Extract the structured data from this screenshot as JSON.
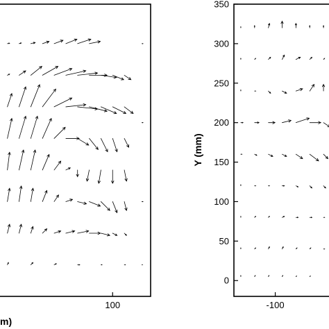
{
  "chart_data": [
    {
      "type": "vector-field",
      "title": "",
      "xlabel": "",
      "xlabel_fragment": "m)",
      "ylabel": "",
      "x_ticks": [
        100
      ],
      "y_ticks": [],
      "x_tick_labels": [
        "100"
      ],
      "xlim": [
        -95,
        165
      ],
      "ylim": [
        -20,
        350
      ],
      "grid": false,
      "legend": "none",
      "vectors": [
        {
          "x": -80,
          "y": 300,
          "u": 1,
          "v": 0.2
        },
        {
          "x": -60,
          "y": 300,
          "u": 1,
          "v": 0.3
        },
        {
          "x": -40,
          "y": 300,
          "u": 2,
          "v": 0.5
        },
        {
          "x": -20,
          "y": 300,
          "u": 3,
          "v": 1
        },
        {
          "x": 0,
          "y": 300,
          "u": 4,
          "v": 1.5
        },
        {
          "x": 20,
          "y": 300,
          "u": 5,
          "v": 2
        },
        {
          "x": 40,
          "y": 300,
          "u": 6,
          "v": 2
        },
        {
          "x": 60,
          "y": 300,
          "u": 5,
          "v": 1
        },
        {
          "x": -80,
          "y": 260,
          "u": 1,
          "v": 0.5
        },
        {
          "x": -60,
          "y": 260,
          "u": 3,
          "v": 2
        },
        {
          "x": -40,
          "y": 260,
          "u": 5,
          "v": 4
        },
        {
          "x": -20,
          "y": 260,
          "u": 7,
          "v": 4
        },
        {
          "x": 0,
          "y": 260,
          "u": 8,
          "v": 3
        },
        {
          "x": 20,
          "y": 260,
          "u": 9,
          "v": 2
        },
        {
          "x": 40,
          "y": 260,
          "u": 9,
          "v": 1
        },
        {
          "x": 60,
          "y": 260,
          "u": 8,
          "v": 0
        },
        {
          "x": 80,
          "y": 260,
          "u": 7,
          "v": -1
        },
        {
          "x": 100,
          "y": 260,
          "u": 5,
          "v": -2
        },
        {
          "x": 120,
          "y": 260,
          "u": 3,
          "v": -2
        },
        {
          "x": -80,
          "y": 220,
          "u": 2,
          "v": 6
        },
        {
          "x": -60,
          "y": 220,
          "u": 3,
          "v": 9
        },
        {
          "x": -40,
          "y": 220,
          "u": 4,
          "v": 10
        },
        {
          "x": -20,
          "y": 220,
          "u": 6,
          "v": 8
        },
        {
          "x": 0,
          "y": 220,
          "u": 8,
          "v": 4
        },
        {
          "x": 20,
          "y": 220,
          "u": 9,
          "v": 1
        },
        {
          "x": 40,
          "y": 220,
          "u": 9,
          "v": -1
        },
        {
          "x": 60,
          "y": 220,
          "u": 8,
          "v": -2
        },
        {
          "x": 80,
          "y": 220,
          "u": 7,
          "v": -3
        },
        {
          "x": 100,
          "y": 220,
          "u": 6,
          "v": -3
        },
        {
          "x": 120,
          "y": 220,
          "u": 4,
          "v": -3
        },
        {
          "x": -80,
          "y": 180,
          "u": 2,
          "v": 9
        },
        {
          "x": -60,
          "y": 180,
          "u": 3,
          "v": 10
        },
        {
          "x": -40,
          "y": 180,
          "u": 3,
          "v": 10
        },
        {
          "x": -20,
          "y": 180,
          "u": 4,
          "v": 9
        },
        {
          "x": 0,
          "y": 180,
          "u": 5,
          "v": 5
        },
        {
          "x": 20,
          "y": 180,
          "u": 6,
          "v": 0
        },
        {
          "x": 40,
          "y": 180,
          "u": 5,
          "v": -3
        },
        {
          "x": 60,
          "y": 180,
          "u": 4,
          "v": -5
        },
        {
          "x": 80,
          "y": 180,
          "u": 3,
          "v": -6
        },
        {
          "x": 100,
          "y": 180,
          "u": 2,
          "v": -6
        },
        {
          "x": 120,
          "y": 180,
          "u": 2,
          "v": -4
        },
        {
          "x": -80,
          "y": 140,
          "u": 1,
          "v": 8
        },
        {
          "x": -60,
          "y": 140,
          "u": 2,
          "v": 9
        },
        {
          "x": -40,
          "y": 140,
          "u": 2,
          "v": 9
        },
        {
          "x": -20,
          "y": 140,
          "u": 3,
          "v": 7
        },
        {
          "x": 0,
          "y": 140,
          "u": 3,
          "v": 4
        },
        {
          "x": 20,
          "y": 140,
          "u": 2,
          "v": 1
        },
        {
          "x": 40,
          "y": 140,
          "u": 0,
          "v": -3
        },
        {
          "x": 60,
          "y": 140,
          "u": -1,
          "v": -5
        },
        {
          "x": 80,
          "y": 140,
          "u": -1,
          "v": -6
        },
        {
          "x": 100,
          "y": 140,
          "u": 0,
          "v": -6
        },
        {
          "x": 120,
          "y": 140,
          "u": 1,
          "v": -5
        },
        {
          "x": -80,
          "y": 100,
          "u": 1,
          "v": 6
        },
        {
          "x": -60,
          "y": 100,
          "u": 1,
          "v": 7
        },
        {
          "x": -40,
          "y": 100,
          "u": 1,
          "v": 6
        },
        {
          "x": -20,
          "y": 100,
          "u": 2,
          "v": 5
        },
        {
          "x": 0,
          "y": 100,
          "u": 2,
          "v": 3
        },
        {
          "x": 20,
          "y": 100,
          "u": 3,
          "v": 1
        },
        {
          "x": 40,
          "y": 100,
          "u": 4,
          "v": -1
        },
        {
          "x": 60,
          "y": 100,
          "u": 5,
          "v": -2
        },
        {
          "x": 80,
          "y": 100,
          "u": 4,
          "v": -4
        },
        {
          "x": 100,
          "y": 100,
          "u": 2,
          "v": -5
        },
        {
          "x": 120,
          "y": 100,
          "u": 1,
          "v": -4
        },
        {
          "x": -80,
          "y": 60,
          "u": 1,
          "v": 4
        },
        {
          "x": -60,
          "y": 60,
          "u": 1,
          "v": 4
        },
        {
          "x": -40,
          "y": 60,
          "u": 1,
          "v": 3
        },
        {
          "x": -20,
          "y": 60,
          "u": 2,
          "v": 2
        },
        {
          "x": 0,
          "y": 60,
          "u": 3,
          "v": 1
        },
        {
          "x": 20,
          "y": 60,
          "u": 4,
          "v": 1
        },
        {
          "x": 40,
          "y": 60,
          "u": 5,
          "v": 1
        },
        {
          "x": 60,
          "y": 60,
          "u": 5,
          "v": 0
        },
        {
          "x": 80,
          "y": 60,
          "u": 4,
          "v": -1
        },
        {
          "x": 100,
          "y": 60,
          "u": 2,
          "v": -1
        },
        {
          "x": 120,
          "y": 60,
          "u": 1,
          "v": -1
        },
        {
          "x": -80,
          "y": 20,
          "u": 0.5,
          "v": 1
        },
        {
          "x": -40,
          "y": 20,
          "u": 1,
          "v": 1
        },
        {
          "x": 0,
          "y": 20,
          "u": 1,
          "v": 0.5
        },
        {
          "x": 40,
          "y": 20,
          "u": 1,
          "v": 0
        },
        {
          "x": 80,
          "y": 20,
          "u": 0.5,
          "v": 0
        },
        {
          "x": 120,
          "y": 20,
          "u": 0.5,
          "v": 0
        },
        {
          "x": 150,
          "y": 300,
          "u": 0.5,
          "v": 0
        },
        {
          "x": 150,
          "y": 200,
          "u": 0.5,
          "v": 0
        },
        {
          "x": 150,
          "y": 100,
          "u": 0.5,
          "v": 0
        },
        {
          "x": 150,
          "y": 20,
          "u": 0.3,
          "v": 0
        }
      ]
    },
    {
      "type": "vector-field",
      "title": "",
      "xlabel": "",
      "ylabel": "Y (mm)",
      "x_ticks": [
        -100
      ],
      "y_ticks": [
        0,
        50,
        100,
        150,
        200,
        250,
        300,
        350
      ],
      "x_tick_labels": [
        "-100"
      ],
      "y_tick_labels": [
        "0",
        "50",
        "100",
        "150",
        "200",
        "250",
        "300",
        "350"
      ],
      "xlim": [
        -160,
        -20
      ],
      "ylim": [
        -20,
        350
      ],
      "grid": false,
      "legend": "none",
      "vectors": [
        {
          "x": -150,
          "y": 320,
          "u": 0,
          "v": 0.5
        },
        {
          "x": -130,
          "y": 320,
          "u": 0,
          "v": 1
        },
        {
          "x": -110,
          "y": 320,
          "u": 0.5,
          "v": 2
        },
        {
          "x": -90,
          "y": 320,
          "u": 0,
          "v": 3
        },
        {
          "x": -70,
          "y": 320,
          "u": 0,
          "v": 2
        },
        {
          "x": -50,
          "y": 320,
          "u": 0,
          "v": 1
        },
        {
          "x": -30,
          "y": 320,
          "u": 0,
          "v": 1
        },
        {
          "x": -150,
          "y": 280,
          "u": 0,
          "v": 0.5
        },
        {
          "x": -130,
          "y": 280,
          "u": 0.5,
          "v": 0.5
        },
        {
          "x": -110,
          "y": 280,
          "u": 1,
          "v": 1
        },
        {
          "x": -90,
          "y": 280,
          "u": 1,
          "v": 2
        },
        {
          "x": -70,
          "y": 280,
          "u": 2,
          "v": 1
        },
        {
          "x": -50,
          "y": 280,
          "u": 1,
          "v": 1
        },
        {
          "x": -30,
          "y": 280,
          "u": 0.5,
          "v": 0.5
        },
        {
          "x": -150,
          "y": 240,
          "u": 0,
          "v": 0.5
        },
        {
          "x": -130,
          "y": 240,
          "u": 0.5,
          "v": 0
        },
        {
          "x": -110,
          "y": 240,
          "u": 1,
          "v": -1
        },
        {
          "x": -90,
          "y": 240,
          "u": 2,
          "v": -1
        },
        {
          "x": -70,
          "y": 240,
          "u": 3,
          "v": 1
        },
        {
          "x": -50,
          "y": 240,
          "u": 2,
          "v": 3
        },
        {
          "x": -30,
          "y": 240,
          "u": 0,
          "v": 3
        },
        {
          "x": -150,
          "y": 200,
          "u": 1,
          "v": 0
        },
        {
          "x": -130,
          "y": 200,
          "u": 2,
          "v": 0
        },
        {
          "x": -110,
          "y": 200,
          "u": 3,
          "v": 0
        },
        {
          "x": -90,
          "y": 200,
          "u": 4,
          "v": 1
        },
        {
          "x": -70,
          "y": 200,
          "u": 6,
          "v": 2
        },
        {
          "x": -50,
          "y": 200,
          "u": 5,
          "v": 0
        },
        {
          "x": -30,
          "y": 200,
          "u": 3,
          "v": -2
        },
        {
          "x": -150,
          "y": 160,
          "u": 0.5,
          "v": 0
        },
        {
          "x": -130,
          "y": 160,
          "u": 1,
          "v": -0.5
        },
        {
          "x": -110,
          "y": 160,
          "u": 2,
          "v": -1
        },
        {
          "x": -90,
          "y": 160,
          "u": 2,
          "v": -1
        },
        {
          "x": -70,
          "y": 160,
          "u": 3,
          "v": -2
        },
        {
          "x": -50,
          "y": 160,
          "u": 4,
          "v": -3
        },
        {
          "x": -30,
          "y": 160,
          "u": 2,
          "v": -2
        },
        {
          "x": -150,
          "y": 120,
          "u": 0,
          "v": 0.5
        },
        {
          "x": -130,
          "y": 120,
          "u": 0.5,
          "v": 0
        },
        {
          "x": -110,
          "y": 120,
          "u": 0.5,
          "v": 0
        },
        {
          "x": -90,
          "y": 120,
          "u": 1,
          "v": 0
        },
        {
          "x": -70,
          "y": 120,
          "u": 1,
          "v": -0.5
        },
        {
          "x": -50,
          "y": 120,
          "u": 1,
          "v": -1
        },
        {
          "x": -30,
          "y": 120,
          "u": 1,
          "v": -1
        },
        {
          "x": -150,
          "y": 80,
          "u": 0,
          "v": 0.5
        },
        {
          "x": -130,
          "y": 80,
          "u": 0.5,
          "v": 0.5
        },
        {
          "x": -110,
          "y": 80,
          "u": 0.5,
          "v": 0.5
        },
        {
          "x": -90,
          "y": 80,
          "u": 1,
          "v": 0.5
        },
        {
          "x": -70,
          "y": 80,
          "u": 1,
          "v": 0
        },
        {
          "x": -50,
          "y": 80,
          "u": 1,
          "v": 0
        },
        {
          "x": -30,
          "y": 80,
          "u": 0.5,
          "v": 0
        },
        {
          "x": -150,
          "y": 40,
          "u": 0,
          "v": 0.5
        },
        {
          "x": -130,
          "y": 40,
          "u": 0.5,
          "v": 0.5
        },
        {
          "x": -110,
          "y": 40,
          "u": 0.5,
          "v": 1
        },
        {
          "x": -90,
          "y": 40,
          "u": 0.5,
          "v": 1
        },
        {
          "x": -70,
          "y": 40,
          "u": 0.5,
          "v": 0.5
        },
        {
          "x": -50,
          "y": 40,
          "u": 0.5,
          "v": 0.5
        },
        {
          "x": -30,
          "y": 40,
          "u": 0.5,
          "v": 0
        },
        {
          "x": -150,
          "y": 5,
          "u": 0,
          "v": 0.5
        },
        {
          "x": -130,
          "y": 5,
          "u": 0.3,
          "v": 0.5
        },
        {
          "x": -110,
          "y": 5,
          "u": 0.3,
          "v": 0.5
        },
        {
          "x": -90,
          "y": 5,
          "u": 0.3,
          "v": 0.5
        },
        {
          "x": -70,
          "y": 5,
          "u": 0.3,
          "v": 0.3
        },
        {
          "x": -50,
          "y": 5,
          "u": 0.3,
          "v": 0.3
        }
      ]
    }
  ]
}
